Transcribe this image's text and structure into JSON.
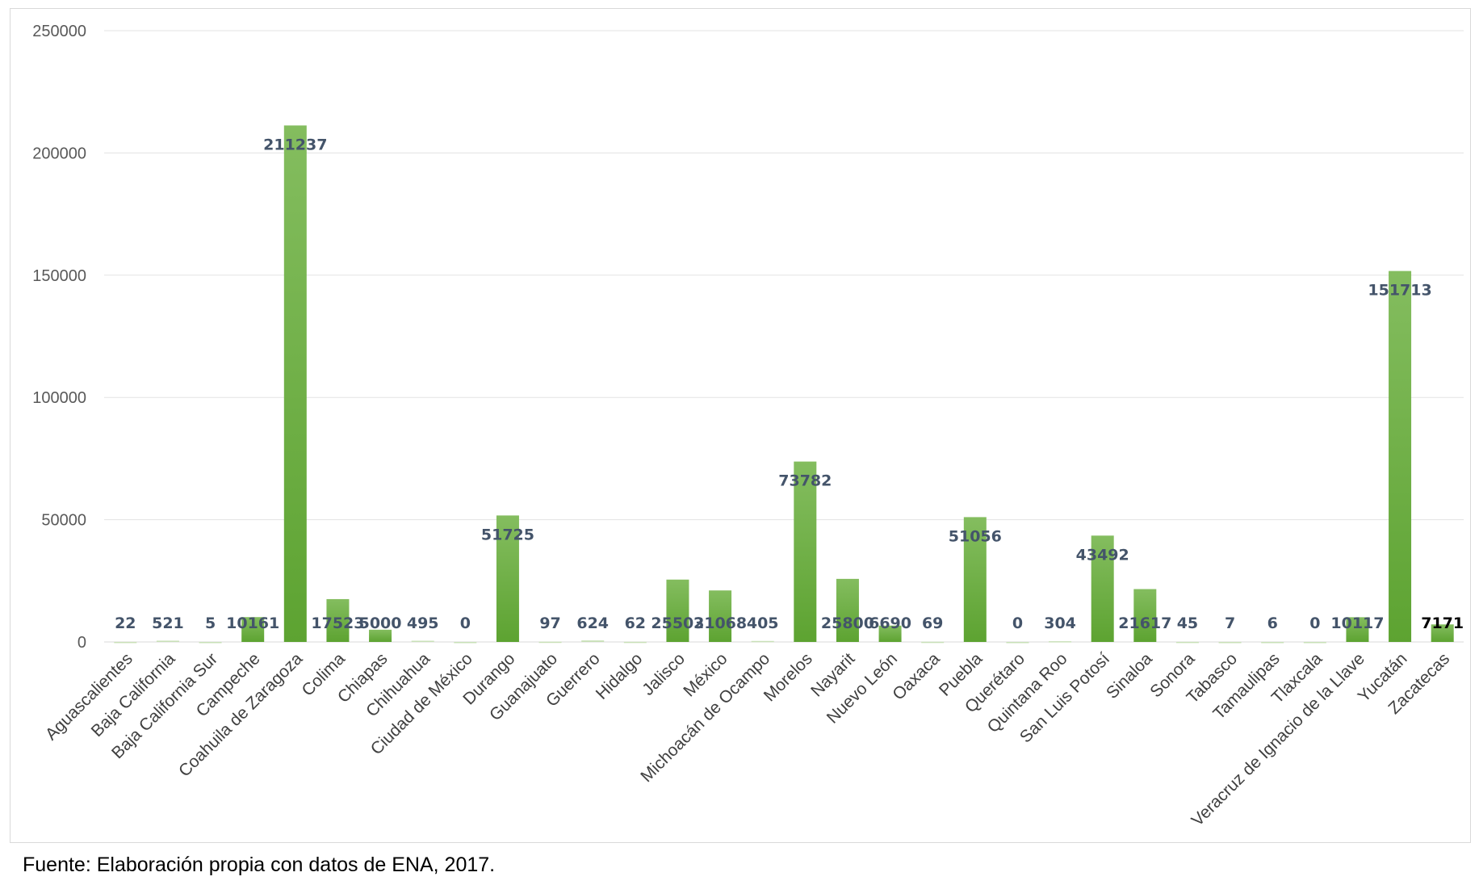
{
  "chart_data": {
    "type": "bar",
    "title": "",
    "xlabel": "",
    "ylabel": "",
    "ylim": [
      0,
      250000
    ],
    "yticks": [
      "0",
      "50000",
      "100000",
      "150000",
      "200000",
      "250000"
    ],
    "grid": true,
    "legend": "none",
    "bar_color_top": "#84bd5f",
    "bar_color_bottom": "#5da331",
    "categories": [
      "Aguascalientes",
      "Baja California",
      "Baja California Sur",
      "Campeche",
      "Coahuila de Zaragoza",
      "Colima",
      "Chiapas",
      "Chihuahua",
      "Ciudad de México",
      "Durango",
      "Guanajuato",
      "Guerrero",
      "Hidalgo",
      "Jalisco",
      "México",
      "Michoacán de Ocampo",
      "Morelos",
      "Nayarit",
      "Nuevo León",
      "Oaxaca",
      "Puebla",
      "Querétaro",
      "Quintana Roo",
      "San Luis Potosí",
      "Sinaloa",
      "Sonora",
      "Tabasco",
      "Tamaulipas",
      "Tlaxcala",
      "Veracruz de Ignacio de la Llave",
      "Yucatán",
      "Zacatecas"
    ],
    "values": [
      22,
      521,
      5,
      10161,
      211237,
      17523,
      5000,
      495,
      0,
      51725,
      97,
      624,
      62,
      25503,
      21068,
      405,
      73782,
      25800,
      6690,
      69,
      51056,
      0,
      304,
      43492,
      21617,
      45,
      7,
      6,
      0,
      10117,
      151713,
      7171
    ],
    "data_labels": [
      "22",
      "521",
      "5",
      "10161",
      "211237",
      "17523",
      "5000",
      "495",
      "0",
      "51725",
      "97",
      "624",
      "62",
      "25503",
      "21068",
      "405",
      "73782",
      "25800",
      "6690",
      "69",
      "51056",
      "0",
      "304",
      "43492",
      "21617",
      "45",
      "7",
      "6",
      "0",
      "10117",
      "151713",
      "7171"
    ]
  },
  "source_note": "Fuente: Elaboración propia con datos de ENA, 2017."
}
